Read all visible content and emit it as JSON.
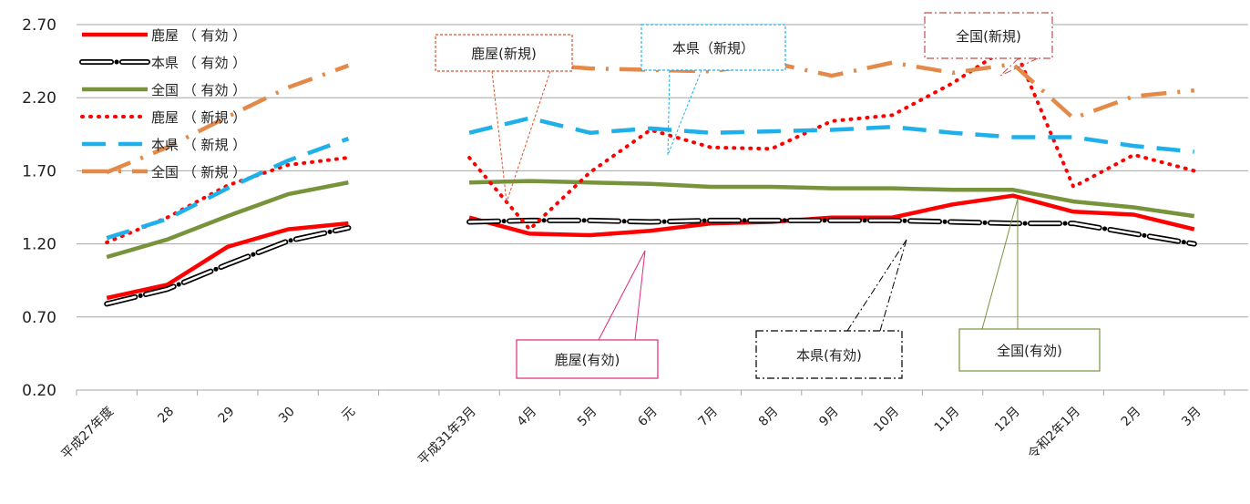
{
  "chart_data": {
    "type": "line",
    "title": "",
    "xlabel": "",
    "ylabel": "",
    "ylim": [
      0.2,
      2.7
    ],
    "yticks": [
      "0.20",
      "0.70",
      "1.20",
      "1.70",
      "2.20",
      "2.70"
    ],
    "grid": "horizontal",
    "legend_position": "top-left",
    "segments": [
      {
        "categories": [
          "平成27年度",
          "28",
          "29",
          "30",
          "元"
        ]
      },
      {
        "categories": [
          "平成31年3月",
          "4月",
          "5月",
          "6月",
          "7月",
          "8月",
          "9月",
          "10月",
          "11月",
          "12月",
          "令和2年1月",
          "2月",
          "3月"
        ]
      }
    ],
    "series": [
      {
        "name": "鹿屋 （ 有効 ）",
        "color": "#ff0000",
        "style": "solid",
        "annual": [
          0.83,
          0.92,
          1.18,
          1.3,
          1.34
        ],
        "monthly": [
          1.38,
          1.27,
          1.26,
          1.29,
          1.34,
          1.35,
          1.38,
          1.38,
          1.47,
          1.53,
          1.42,
          1.4,
          1.3
        ]
      },
      {
        "name": "本県 （ 有効 ）",
        "color": "#000000",
        "style": "longdash-dot",
        "annual": [
          0.79,
          0.89,
          1.06,
          1.22,
          1.31
        ],
        "monthly": [
          1.35,
          1.36,
          1.36,
          1.35,
          1.36,
          1.36,
          1.36,
          1.36,
          1.35,
          1.34,
          1.34,
          1.27,
          1.2
        ]
      },
      {
        "name": "全国 （ 有効 ）",
        "color": "#77933c",
        "style": "solid",
        "annual": [
          1.11,
          1.23,
          1.39,
          1.54,
          1.62
        ],
        "monthly": [
          1.62,
          1.63,
          1.62,
          1.61,
          1.59,
          1.59,
          1.58,
          1.58,
          1.57,
          1.57,
          1.49,
          1.45,
          1.39
        ]
      },
      {
        "name": "鹿屋 （ 新規 ）",
        "color": "#ff0000",
        "style": "dotted",
        "annual": [
          1.21,
          1.38,
          1.6,
          1.74,
          1.79
        ],
        "monthly": [
          1.79,
          1.3,
          1.69,
          1.98,
          1.86,
          1.85,
          2.04,
          2.08,
          2.3,
          2.57,
          1.59,
          1.81,
          1.7
        ]
      },
      {
        "name": "本県 （ 新規 ）",
        "color": "#1fb0ea",
        "style": "dashed",
        "annual": [
          1.24,
          1.37,
          1.58,
          1.77,
          1.92
        ],
        "monthly": [
          1.96,
          2.06,
          1.96,
          1.99,
          1.96,
          1.97,
          1.98,
          2.0,
          1.96,
          1.93,
          1.93,
          1.87,
          1.83
        ]
      },
      {
        "name": "全国 （ 新規 ）",
        "color": "#e3894a",
        "style": "dash-dot",
        "annual": [
          1.69,
          1.86,
          2.07,
          2.27,
          2.42
        ],
        "monthly": [
          2.44,
          2.43,
          2.4,
          2.39,
          2.38,
          2.44,
          2.35,
          2.44,
          2.37,
          2.43,
          2.06,
          2.21,
          2.25
        ]
      }
    ],
    "annotations": [
      {
        "label": "鹿屋(新規)",
        "border_color": "#d9542b",
        "border_style": "dashed"
      },
      {
        "label": "本県（新規）",
        "border_color": "#1fb0ea",
        "border_style": "dashed"
      },
      {
        "label": "全国(新規)",
        "border_color": "#c0504d",
        "border_style": "dash-dot"
      },
      {
        "label": "鹿屋(有効)",
        "border_color": "#e0287a",
        "border_style": "solid"
      },
      {
        "label": "本県(有効)",
        "border_color": "#000000",
        "border_style": "dash-dot"
      },
      {
        "label": "全国(有効)",
        "border_color": "#77933c",
        "border_style": "solid"
      }
    ]
  }
}
